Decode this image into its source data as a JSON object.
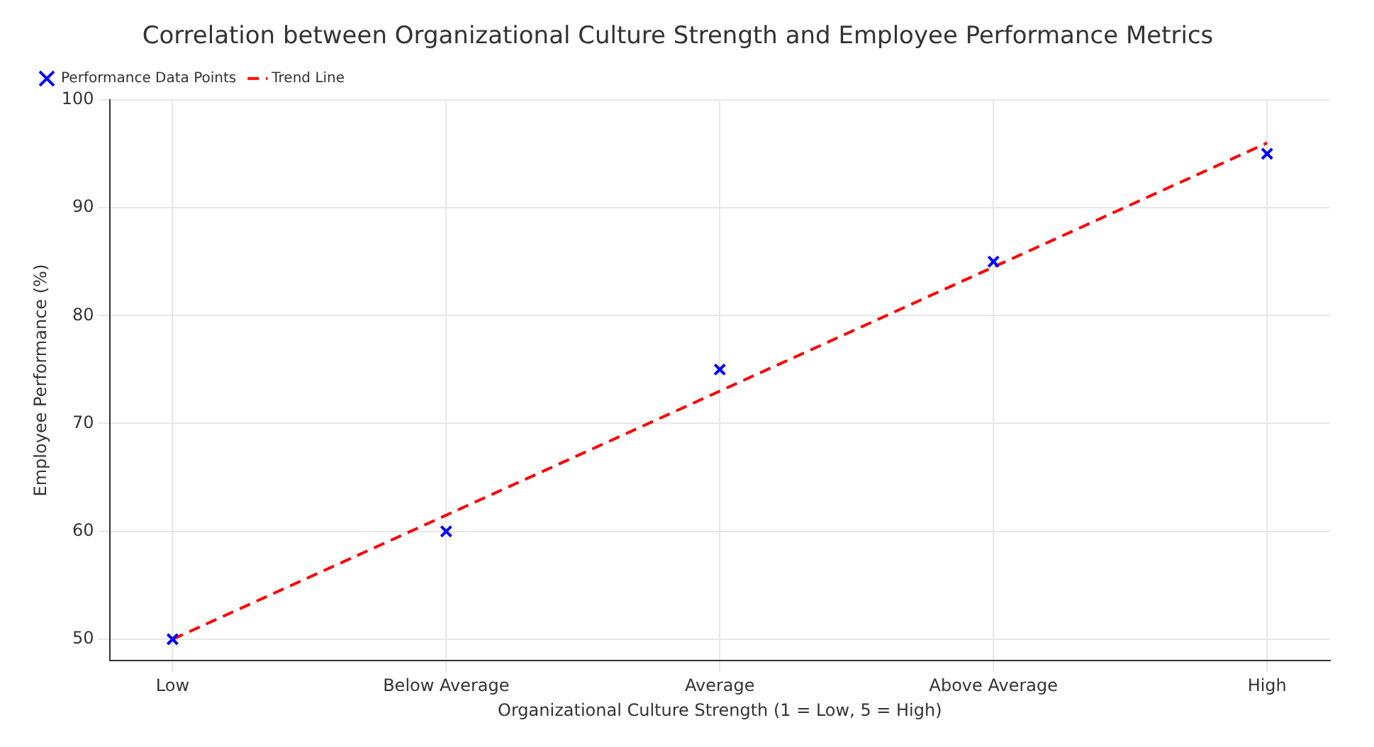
{
  "chart_data": {
    "type": "scatter",
    "title": "Correlation between Organizational Culture Strength and Employee Performance Metrics",
    "xlabel": "Organizational Culture Strength (1 = Low, 5 = High)",
    "ylabel": "Employee Performance (%)",
    "categories": [
      "Low",
      "Below Average",
      "Average",
      "Above Average",
      "High"
    ],
    "series": [
      {
        "name": "Performance Data Points",
        "type": "scatter",
        "color": "#0000ff",
        "marker": "cross",
        "values": [
          50,
          60,
          75,
          85,
          95
        ]
      },
      {
        "name": "Trend Line",
        "type": "line",
        "color": "#ff0000",
        "line_style": "dashed",
        "marker": "none",
        "values": [
          50,
          61.5,
          73,
          84.5,
          96
        ]
      }
    ],
    "ylim": [
      48,
      100
    ],
    "yticks": [
      50,
      60,
      70,
      80,
      90,
      100
    ],
    "grid": true,
    "legend": "top left"
  }
}
